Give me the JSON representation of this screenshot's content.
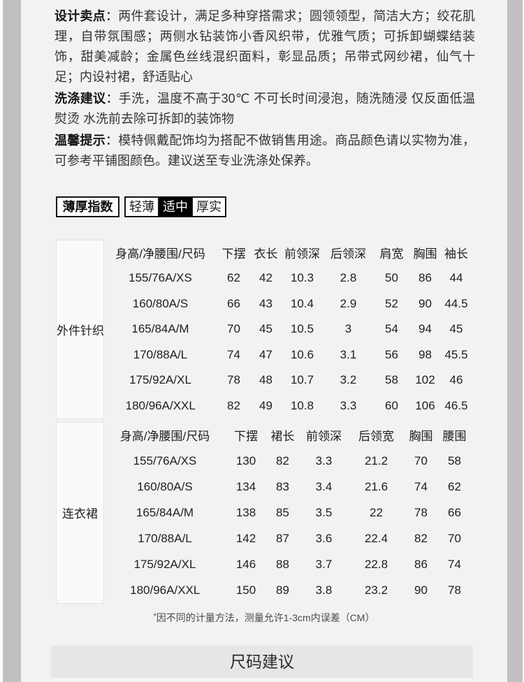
{
  "colors": {
    "content_bg": "#f3f2f3",
    "edge_strip": "#c2bfc2",
    "selected_bg": "#000000",
    "banner_bg": "#e6e6e6"
  },
  "paragraphs": [
    {
      "label": "设计卖点",
      "colon": "：",
      "text": "两件套设计，满足多种穿搭需求；圆领领型，简洁大方；绞花肌理，自带氛围感；两侧水钻装饰小香风织带，优雅气质；可拆卸蝴蝶结装饰，甜美减龄；金属色丝线混织面料，彰显品质；吊带式网纱裙，仙气十足；内设衬裙，舒适贴心"
    },
    {
      "label": "洗涤建议",
      "colon": "：",
      "text": "手洗，温度不高于30℃ 不可长时间浸泡，随洗随浸 仅反面低温熨烫 水洗前去除可拆卸的装饰物"
    },
    {
      "label": "温馨提示",
      "colon": "：",
      "text": "模特佩戴配饰均为搭配不做销售用途。商品颜色请以实物为准，可参考平铺图颜色。建议送至专业洗涤处保养。"
    }
  ],
  "thickness": {
    "label": "薄厚指数",
    "options": [
      {
        "label": "轻薄",
        "selected": false
      },
      {
        "label": "适中",
        "selected": true
      },
      {
        "label": "厚实",
        "selected": false
      }
    ]
  },
  "size_tables": [
    {
      "category": "外件针织",
      "headers": [
        "身高/净腰围/尺码",
        "下摆",
        "衣长",
        "前领深",
        "后领深",
        "肩宽",
        "胸围",
        "袖长"
      ],
      "rows": [
        [
          "155/76A/XS",
          "62",
          "42",
          "10.3",
          "2.8",
          "50",
          "86",
          "44"
        ],
        [
          "160/80A/S",
          "66",
          "43",
          "10.4",
          "2.9",
          "52",
          "90",
          "44.5"
        ],
        [
          "165/84A/M",
          "70",
          "45",
          "10.5",
          "3",
          "54",
          "94",
          "45"
        ],
        [
          "170/88A/L",
          "74",
          "47",
          "10.6",
          "3.1",
          "56",
          "98",
          "45.5"
        ],
        [
          "175/92A/XL",
          "78",
          "48",
          "10.7",
          "3.2",
          "58",
          "102",
          "46"
        ],
        [
          "180/96A/XXL",
          "82",
          "49",
          "10.8",
          "3.3",
          "60",
          "106",
          "46.5"
        ]
      ]
    },
    {
      "category": "连衣裙",
      "headers": [
        "身高/净腰围/尺码",
        "下摆",
        "裙长",
        "前领深",
        "后领宽",
        "胸围",
        "腰围"
      ],
      "rows": [
        [
          "155/76A/XS",
          "130",
          "82",
          "3.3",
          "21.2",
          "70",
          "58"
        ],
        [
          "160/80A/S",
          "134",
          "83",
          "3.4",
          "21.6",
          "74",
          "62"
        ],
        [
          "165/84A/M",
          "138",
          "85",
          "3.5",
          "22",
          "78",
          "66"
        ],
        [
          "170/88A/L",
          "142",
          "87",
          "3.6",
          "22.4",
          "82",
          "70"
        ],
        [
          "175/92A/XL",
          "146",
          "88",
          "3.7",
          "22.8",
          "86",
          "74"
        ],
        [
          "180/96A/XXL",
          "150",
          "89",
          "3.8",
          "23.2",
          "90",
          "78"
        ]
      ]
    }
  ],
  "footnote": {
    "asterisk": "*",
    "text": "因不同的计量方法，测量允许1-3cm内误差（CM）"
  },
  "banner": {
    "title": "尺码建议"
  }
}
